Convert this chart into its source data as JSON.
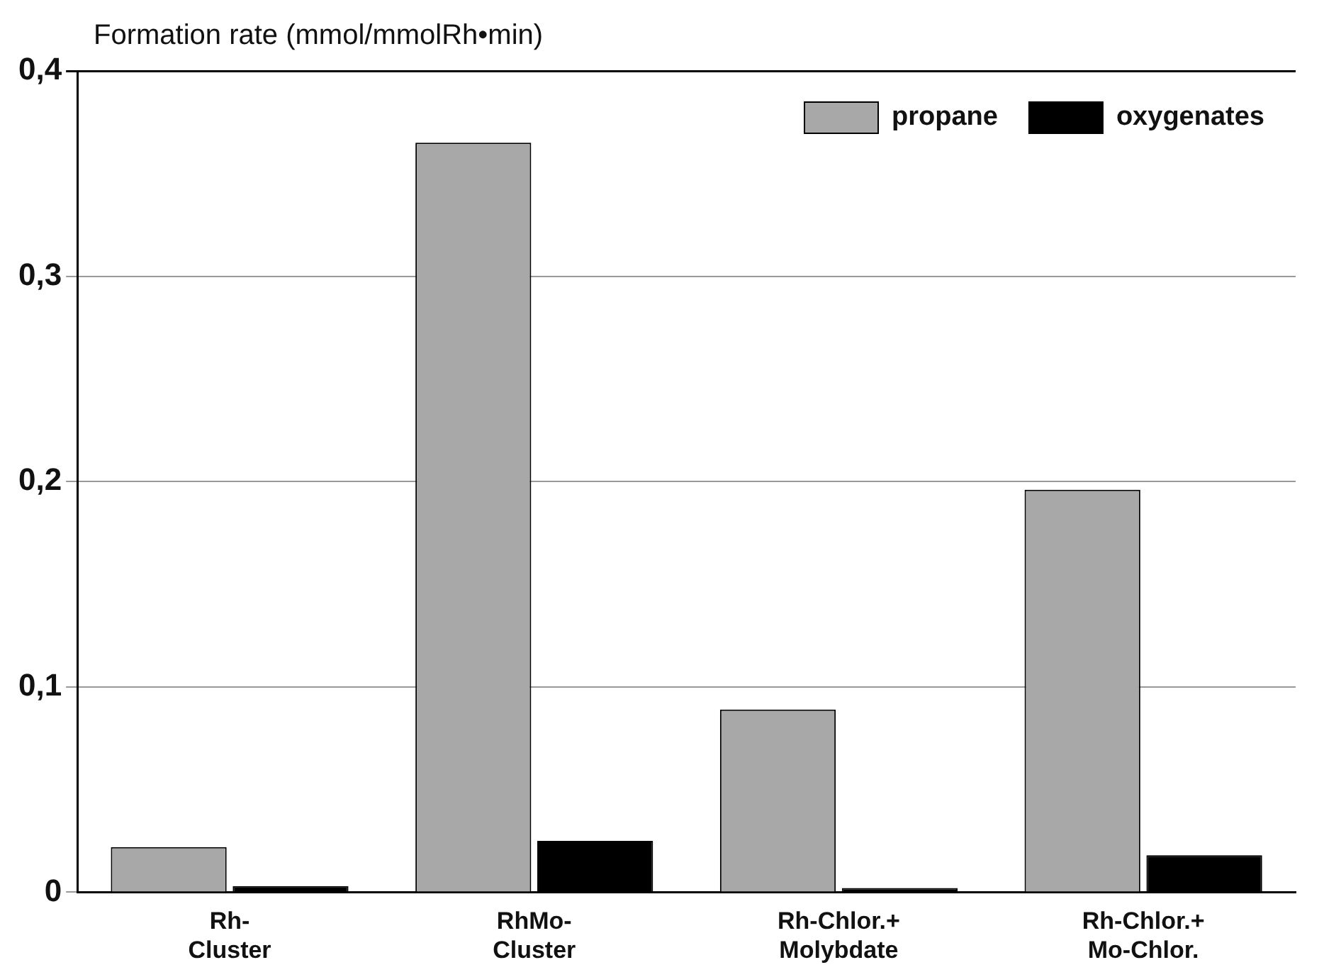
{
  "chart_data": {
    "type": "bar",
    "ylabel": "Formation rate (mmol/mmolRh•min)",
    "categories": [
      "Rh-\nCluster",
      "RhMo-\nCluster",
      "Rh-Chlor.+\nMolybdate",
      "Rh-Chlor.+\nMo-Chlor."
    ],
    "series": [
      {
        "name": "propane",
        "color": "#a8a8a8",
        "values": [
          0.022,
          0.365,
          0.089,
          0.196
        ]
      },
      {
        "name": "oxygenates",
        "color": "#000000",
        "values": [
          0.003,
          0.025,
          0.002,
          0.018
        ]
      }
    ],
    "ylim": [
      0,
      0.4
    ],
    "yticks": [
      0,
      {
        "value": 0.1,
        "label": "0,1"
      },
      {
        "value": 0.2,
        "label": "0,2"
      },
      {
        "value": 0.3,
        "label": "0,3"
      },
      {
        "value": 0.4,
        "label": "0,4"
      }
    ],
    "grid": "y",
    "legend": "top right"
  }
}
